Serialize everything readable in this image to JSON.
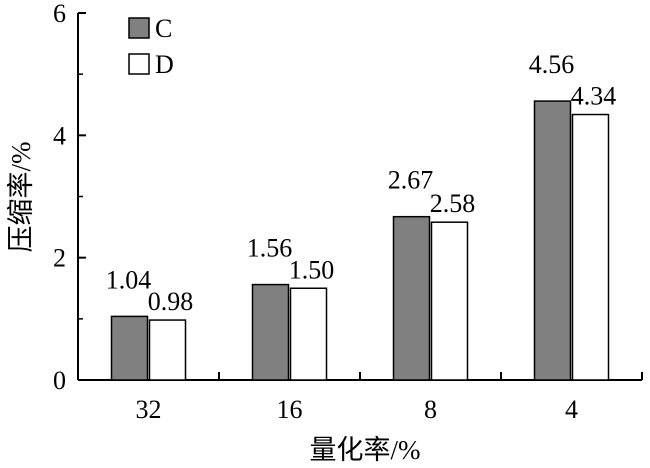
{
  "chart_data": {
    "type": "bar",
    "categories": [
      "32",
      "16",
      "8",
      "4"
    ],
    "series": [
      {
        "name": "C",
        "values": [
          1.04,
          1.56,
          2.67,
          4.56
        ],
        "color": "#808080"
      },
      {
        "name": "D",
        "values": [
          0.98,
          1.5,
          2.58,
          4.34
        ],
        "color": "#ffffff"
      }
    ],
    "data_labels": [
      [
        "1.04",
        "1.56",
        "2.67",
        "4.56"
      ],
      [
        "0.98",
        "1.50",
        "2.58",
        "4.34"
      ]
    ],
    "xlabel": "量化率/%",
    "ylabel": "压缩率/%",
    "ylim": [
      0,
      6
    ],
    "yticks": [
      "0",
      "2",
      "4",
      "6"
    ],
    "grid": false,
    "legend": "top-left"
  }
}
